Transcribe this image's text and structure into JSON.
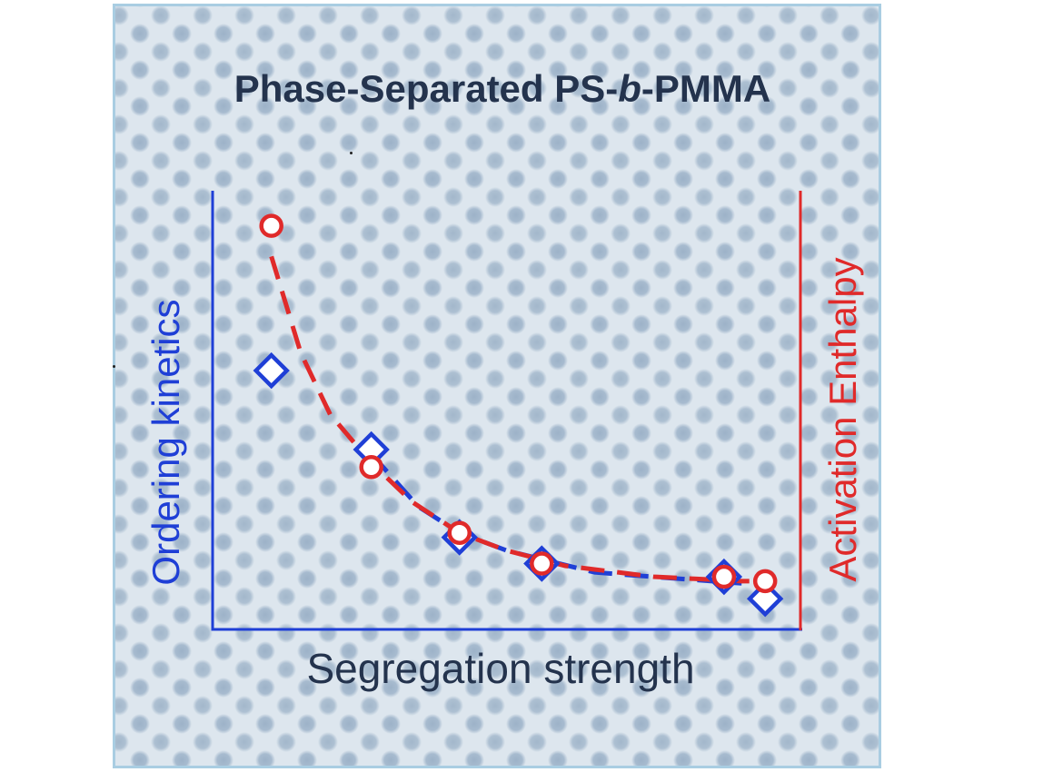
{
  "chart_data": {
    "type": "scatter",
    "title_parts": [
      "Phase-Separated PS-",
      "b",
      "-PMMA"
    ],
    "xlabel": "Segregation strength",
    "ylabel_left": "Ordering kinetics",
    "ylabel_right": "Activation Enthalpy",
    "xlim": [
      0,
      10
    ],
    "ylim": [
      0,
      10
    ],
    "series": [
      {
        "name": "Ordering kinetics",
        "marker": "diamond",
        "color": "#1f3fd6",
        "x": [
          1.0,
          2.7,
          4.2,
          5.6,
          8.7,
          9.4
        ],
        "y": [
          5.9,
          4.1,
          2.1,
          1.5,
          1.2,
          0.7
        ],
        "fit": [
          [
            2.7,
            4.0
          ],
          [
            3.5,
            2.8
          ],
          [
            4.2,
            2.2
          ],
          [
            5.0,
            1.8
          ],
          [
            6.5,
            1.3
          ],
          [
            8.0,
            1.15
          ],
          [
            9.0,
            1.05
          ]
        ]
      },
      {
        "name": "Activation Enthalpy",
        "marker": "circle",
        "color": "#e02a2a",
        "x": [
          1.0,
          2.7,
          4.2,
          5.6,
          8.7,
          9.4
        ],
        "y": [
          9.2,
          3.7,
          2.2,
          1.5,
          1.2,
          1.1
        ],
        "fit": [
          [
            1.0,
            8.5
          ],
          [
            1.5,
            6.3
          ],
          [
            2.0,
            4.9
          ],
          [
            2.7,
            3.8
          ],
          [
            3.4,
            2.9
          ],
          [
            4.2,
            2.2
          ],
          [
            5.0,
            1.8
          ],
          [
            6.0,
            1.45
          ],
          [
            7.5,
            1.2
          ],
          [
            9.0,
            1.1
          ],
          [
            9.6,
            1.1
          ]
        ]
      }
    ]
  },
  "colors": {
    "background": "#dde6ee",
    "border": "#a9cde2",
    "text": "#24334d",
    "left_axis": "#1f3fd6",
    "right_axis": "#e02a2a"
  }
}
